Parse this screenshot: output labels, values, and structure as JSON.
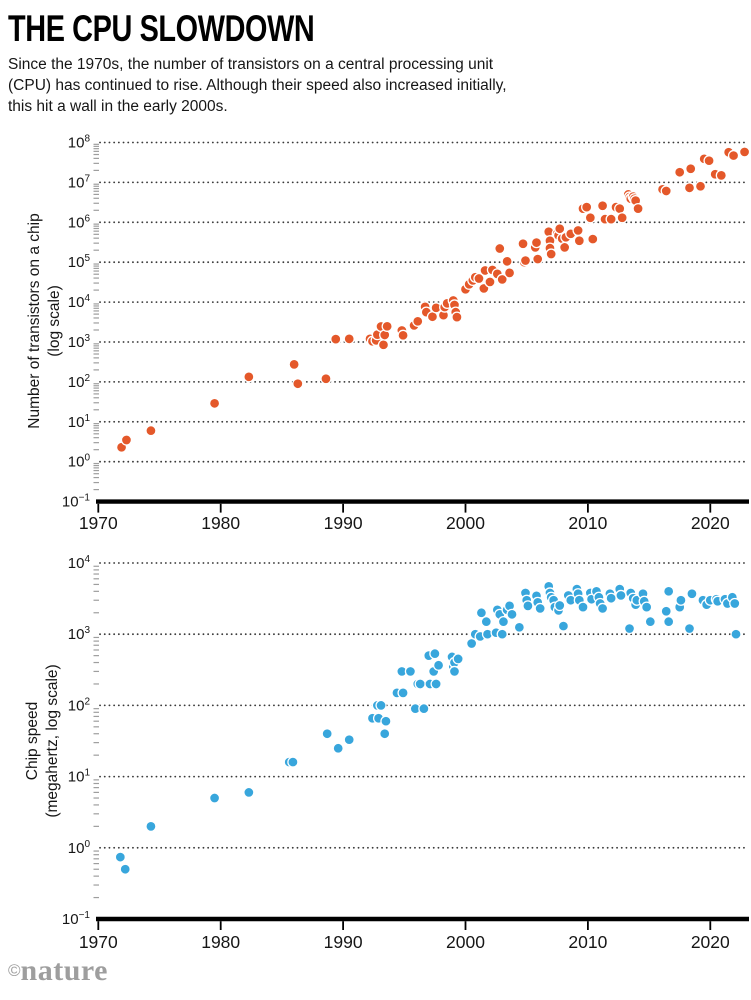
{
  "header": {
    "title": "THE CPU SLOWDOWN",
    "subtitle_lines": [
      "Since the 1970s, the number of transistors on a central processing unit",
      "(CPU) has continued to rise. Although their speed also increased initially,",
      "this hit a wall in the early 2000s."
    ]
  },
  "footer": {
    "credit_symbol": "©",
    "credit_name": "nature"
  },
  "chart_data": [
    {
      "type": "scatter",
      "name": "transistors",
      "ylabel_lines": [
        "Number of transistors on a chip",
        "(log scale)"
      ],
      "y_scale": "log",
      "y_values_in": "thousands of transistors (as plotted on axis)",
      "y_tick_exponents": [
        -1,
        0,
        1,
        2,
        3,
        4,
        5,
        6,
        7,
        8
      ],
      "x_ticks": [
        1970,
        1980,
        1990,
        2000,
        2010,
        2020
      ],
      "xlim": [
        1969.5,
        2023
      ],
      "point_color": "#E4582A",
      "points": [
        [
          1971.9,
          2.3
        ],
        [
          1972.3,
          3.5
        ],
        [
          1974.3,
          6
        ],
        [
          1979.5,
          29
        ],
        [
          1982.3,
          134
        ],
        [
          1986.0,
          275
        ],
        [
          1986.3,
          90
        ],
        [
          1988.6,
          120
        ],
        [
          1989.4,
          1180
        ],
        [
          1990.5,
          1200
        ],
        [
          1992.2,
          1200
        ],
        [
          1992.4,
          1040
        ],
        [
          1992.7,
          1100
        ],
        [
          1992.8,
          1530
        ],
        [
          1993.1,
          2450
        ],
        [
          1993.3,
          850
        ],
        [
          1993.4,
          1500
        ],
        [
          1993.6,
          2470
        ],
        [
          1994.8,
          1950
        ],
        [
          1994.9,
          1470
        ],
        [
          1995.8,
          2600
        ],
        [
          1996.1,
          3300
        ],
        [
          1996.7,
          7600
        ],
        [
          1996.8,
          5600
        ],
        [
          1997.3,
          4300
        ],
        [
          1997.6,
          7200
        ],
        [
          1998.2,
          4700
        ],
        [
          1998.3,
          7500
        ],
        [
          1998.5,
          9300
        ],
        [
          1999.0,
          11000
        ],
        [
          1999.1,
          8500
        ],
        [
          1999.2,
          5600
        ],
        [
          1999.3,
          4200
        ],
        [
          2000.0,
          21000
        ],
        [
          2000.3,
          28000
        ],
        [
          2000.6,
          35000
        ],
        [
          2000.8,
          42000
        ],
        [
          2001.1,
          39000
        ],
        [
          2001.5,
          22000
        ],
        [
          2001.6,
          62000
        ],
        [
          2002.0,
          32000
        ],
        [
          2002.2,
          64000
        ],
        [
          2002.6,
          51000
        ],
        [
          2002.8,
          220000
        ],
        [
          2003.0,
          37000
        ],
        [
          2003.4,
          105000
        ],
        [
          2003.6,
          54000
        ],
        [
          2004.7,
          290000
        ],
        [
          2004.8,
          100000
        ],
        [
          2004.9,
          110000
        ],
        [
          2005.7,
          235000
        ],
        [
          2005.8,
          310000
        ],
        [
          2005.9,
          120000
        ],
        [
          2006.8,
          580000
        ],
        [
          2006.9,
          345000
        ],
        [
          2006.9,
          225000
        ],
        [
          2007.0,
          160000
        ],
        [
          2007.5,
          520000
        ],
        [
          2007.6,
          470000
        ],
        [
          2007.7,
          690000
        ],
        [
          2007.9,
          390000
        ],
        [
          2008.1,
          235000
        ],
        [
          2008.2,
          420000
        ],
        [
          2008.6,
          515000
        ],
        [
          2009.2,
          625000
        ],
        [
          2009.3,
          345000
        ],
        [
          2009.6,
          2200000
        ],
        [
          2009.9,
          2400000
        ],
        [
          2010.2,
          1300000
        ],
        [
          2010.4,
          380000
        ],
        [
          2011.2,
          2600000
        ],
        [
          2011.4,
          1200000
        ],
        [
          2011.9,
          1200000
        ],
        [
          2012.3,
          2400000
        ],
        [
          2012.6,
          2200000
        ],
        [
          2012.8,
          1300000
        ],
        [
          2013.3,
          5000000
        ],
        [
          2013.4,
          4300000
        ],
        [
          2013.5,
          3900000
        ],
        [
          2013.7,
          4400000
        ],
        [
          2013.8,
          3900000
        ],
        [
          2013.9,
          3500000
        ],
        [
          2014.1,
          2200000
        ],
        [
          2016.1,
          6700000
        ],
        [
          2016.4,
          6100000
        ],
        [
          2017.5,
          18000000
        ],
        [
          2018.3,
          7300000
        ],
        [
          2018.4,
          22000000
        ],
        [
          2019.2,
          8000000
        ],
        [
          2019.5,
          39000000
        ],
        [
          2019.9,
          35000000
        ],
        [
          2020.4,
          16000000
        ],
        [
          2020.9,
          15000000
        ],
        [
          2021.5,
          57000000
        ],
        [
          2021.9,
          47000000
        ],
        [
          2022.8,
          58000000
        ]
      ]
    },
    {
      "type": "scatter",
      "name": "chip-speed",
      "ylabel_lines": [
        "Chip speed",
        "(megahertz, log scale)"
      ],
      "y_scale": "log",
      "y_values_in": "megahertz",
      "y_tick_exponents": [
        -1,
        0,
        1,
        2,
        3,
        4
      ],
      "x_ticks": [
        1970,
        1980,
        1990,
        2000,
        2010,
        2020
      ],
      "xlim": [
        1969.5,
        2023
      ],
      "point_color": "#38A6DC",
      "points": [
        [
          1971.8,
          0.74
        ],
        [
          1972.2,
          0.5
        ],
        [
          1974.3,
          2
        ],
        [
          1979.5,
          5
        ],
        [
          1982.3,
          6
        ],
        [
          1985.6,
          16
        ],
        [
          1985.9,
          16
        ],
        [
          1988.7,
          40
        ],
        [
          1989.6,
          25
        ],
        [
          1990.5,
          33
        ],
        [
          1992.4,
          66
        ],
        [
          1992.8,
          100
        ],
        [
          1992.9,
          66
        ],
        [
          1993.1,
          100
        ],
        [
          1993.4,
          40
        ],
        [
          1993.5,
          60
        ],
        [
          1994.4,
          150
        ],
        [
          1994.8,
          300
        ],
        [
          1994.9,
          150
        ],
        [
          1995.5,
          300
        ],
        [
          1995.9,
          90
        ],
        [
          1996.1,
          200
        ],
        [
          1996.3,
          200
        ],
        [
          1996.6,
          90
        ],
        [
          1997.0,
          500
        ],
        [
          1997.1,
          200
        ],
        [
          1997.4,
          300
        ],
        [
          1997.5,
          533
        ],
        [
          1997.6,
          200
        ],
        [
          1997.8,
          366
        ],
        [
          1998.9,
          480
        ],
        [
          1999.0,
          350
        ],
        [
          1999.1,
          400
        ],
        [
          1999.1,
          300
        ],
        [
          1999.4,
          450
        ],
        [
          2000.5,
          740
        ],
        [
          2000.8,
          1000
        ],
        [
          2001.2,
          930
        ],
        [
          2001.3,
          2000
        ],
        [
          2001.7,
          1500
        ],
        [
          2001.8,
          1000
        ],
        [
          2002.5,
          1050
        ],
        [
          2002.6,
          2200
        ],
        [
          2002.8,
          1900
        ],
        [
          2003.0,
          1000
        ],
        [
          2003.1,
          1500
        ],
        [
          2003.4,
          2200
        ],
        [
          2003.6,
          2500
        ],
        [
          2003.8,
          1900
        ],
        [
          2004.4,
          1250
        ],
        [
          2004.9,
          3800
        ],
        [
          2005.0,
          3000
        ],
        [
          2005.1,
          2500
        ],
        [
          2005.8,
          3460
        ],
        [
          2005.9,
          2800
        ],
        [
          2006.1,
          2300
        ],
        [
          2006.8,
          4700
        ],
        [
          2006.9,
          3800
        ],
        [
          2007.0,
          3300
        ],
        [
          2007.2,
          3000
        ],
        [
          2007.3,
          2400
        ],
        [
          2007.6,
          2160
        ],
        [
          2007.7,
          2530
        ],
        [
          2008.0,
          1300
        ],
        [
          2008.4,
          3500
        ],
        [
          2008.6,
          3000
        ],
        [
          2009.1,
          4300
        ],
        [
          2009.2,
          3700
        ],
        [
          2009.3,
          3000
        ],
        [
          2009.6,
          2400
        ],
        [
          2010.2,
          3800
        ],
        [
          2010.3,
          3100
        ],
        [
          2010.7,
          4000
        ],
        [
          2010.9,
          3300
        ],
        [
          2011.0,
          2700
        ],
        [
          2011.2,
          2300
        ],
        [
          2011.8,
          3700
        ],
        [
          2011.9,
          3200
        ],
        [
          2012.6,
          4300
        ],
        [
          2012.7,
          3500
        ],
        [
          2013.4,
          1200
        ],
        [
          2013.5,
          3800
        ],
        [
          2013.7,
          3200
        ],
        [
          2013.9,
          2600
        ],
        [
          2014.0,
          3000
        ],
        [
          2014.5,
          3700
        ],
        [
          2014.6,
          2900
        ],
        [
          2014.8,
          2400
        ],
        [
          2015.1,
          1500
        ],
        [
          2016.4,
          2100
        ],
        [
          2016.6,
          4000
        ],
        [
          2016.6,
          1500
        ],
        [
          2017.5,
          2400
        ],
        [
          2017.6,
          3000
        ],
        [
          2018.3,
          1200
        ],
        [
          2018.5,
          3700
        ],
        [
          2019.4,
          3000
        ],
        [
          2019.7,
          2600
        ],
        [
          2020.0,
          3000
        ],
        [
          2020.5,
          3100
        ],
        [
          2020.6,
          2900
        ],
        [
          2021.2,
          3100
        ],
        [
          2021.4,
          2700
        ],
        [
          2021.8,
          3300
        ],
        [
          2022.0,
          2700
        ],
        [
          2022.1,
          1000
        ]
      ]
    }
  ]
}
